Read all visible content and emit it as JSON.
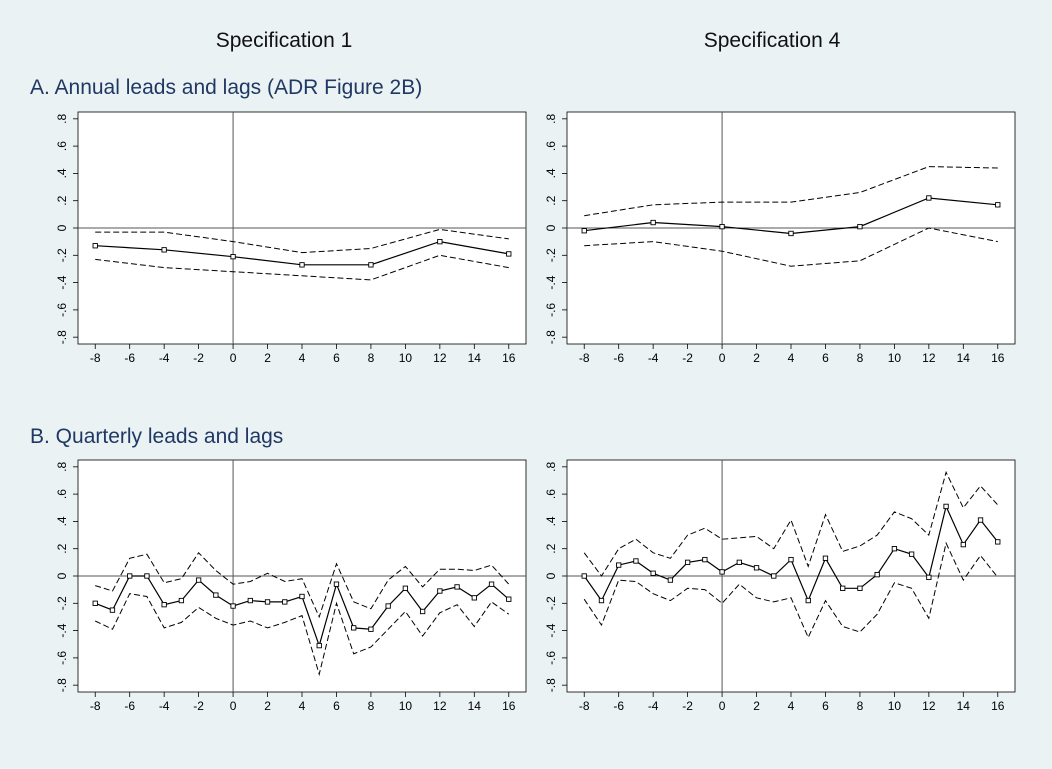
{
  "figure": {
    "col_titles": [
      "Specification 1",
      "Specification 4"
    ],
    "section_titles": [
      "A. Annual leads and lags (ADR Figure 2B)",
      "B. Quarterly leads and lags"
    ],
    "background": "#eaf2f3",
    "title_color": "#1f3864"
  },
  "chart_data": [
    {
      "type": "line",
      "name": "spec1-annual",
      "xlim": [
        -9,
        17
      ],
      "ylim": [
        -0.85,
        0.85
      ],
      "xticks": [
        -8,
        -6,
        -4,
        -2,
        0,
        2,
        4,
        6,
        8,
        10,
        12,
        14,
        16
      ],
      "yticks": [
        -0.8,
        -0.6,
        -0.4,
        -0.2,
        0,
        0.2,
        0.4,
        0.6,
        0.8
      ],
      "ytick_labels": [
        "-.8",
        "-.6",
        "-.4",
        "-.2",
        "0",
        ".2",
        ".4",
        ".6",
        ".8"
      ],
      "grid": false,
      "reference_lines": {
        "x": 0,
        "y": 0
      },
      "x": [
        -8,
        -4,
        0,
        4,
        8,
        12,
        16
      ],
      "series": [
        {
          "role": "estimate",
          "style": "solid",
          "markers": true,
          "values": [
            -0.13,
            -0.16,
            -0.21,
            -0.27,
            -0.27,
            -0.1,
            -0.19
          ]
        },
        {
          "role": "upper",
          "style": "dashed",
          "values": [
            -0.03,
            -0.03,
            -0.1,
            -0.18,
            -0.15,
            -0.01,
            -0.08
          ]
        },
        {
          "role": "lower",
          "style": "dashed",
          "values": [
            -0.23,
            -0.29,
            -0.32,
            -0.35,
            -0.38,
            -0.2,
            -0.29
          ]
        }
      ]
    },
    {
      "type": "line",
      "name": "spec4-annual",
      "xlim": [
        -9,
        17
      ],
      "ylim": [
        -0.85,
        0.85
      ],
      "xticks": [
        -8,
        -6,
        -4,
        -2,
        0,
        2,
        4,
        6,
        8,
        10,
        12,
        14,
        16
      ],
      "yticks": [
        -0.8,
        -0.6,
        -0.4,
        -0.2,
        0,
        0.2,
        0.4,
        0.6,
        0.8
      ],
      "ytick_labels": [
        "-.8",
        "-.6",
        "-.4",
        "-.2",
        "0",
        ".2",
        ".4",
        ".6",
        ".8"
      ],
      "grid": false,
      "reference_lines": {
        "x": 0,
        "y": 0
      },
      "x": [
        -8,
        -4,
        0,
        4,
        8,
        12,
        16
      ],
      "series": [
        {
          "role": "estimate",
          "style": "solid",
          "markers": true,
          "values": [
            -0.02,
            0.04,
            0.01,
            -0.04,
            0.01,
            0.22,
            0.17
          ]
        },
        {
          "role": "upper",
          "style": "dashed",
          "values": [
            0.09,
            0.17,
            0.19,
            0.19,
            0.26,
            0.45,
            0.44
          ]
        },
        {
          "role": "lower",
          "style": "dashed",
          "values": [
            -0.13,
            -0.1,
            -0.17,
            -0.28,
            -0.24,
            0.0,
            -0.1
          ]
        }
      ]
    },
    {
      "type": "line",
      "name": "spec1-quarterly",
      "xlim": [
        -9,
        17
      ],
      "ylim": [
        -0.85,
        0.85
      ],
      "xticks": [
        -8,
        -6,
        -4,
        -2,
        0,
        2,
        4,
        6,
        8,
        10,
        12,
        14,
        16
      ],
      "yticks": [
        -0.8,
        -0.6,
        -0.4,
        -0.2,
        0,
        0.2,
        0.4,
        0.6,
        0.8
      ],
      "ytick_labels": [
        "-.8",
        "-.6",
        "-.4",
        "-.2",
        "0",
        ".2",
        ".4",
        ".6",
        ".8"
      ],
      "grid": false,
      "reference_lines": {
        "x": 0,
        "y": 0
      },
      "x": [
        -8,
        -7,
        -6,
        -5,
        -4,
        -3,
        -2,
        -1,
        0,
        1,
        2,
        3,
        4,
        5,
        6,
        7,
        8,
        9,
        10,
        11,
        12,
        13,
        14,
        15,
        16
      ],
      "series": [
        {
          "role": "estimate",
          "style": "solid",
          "markers": true,
          "values": [
            -0.2,
            -0.25,
            0.0,
            0.0,
            -0.21,
            -0.18,
            -0.03,
            -0.14,
            -0.22,
            -0.18,
            -0.19,
            -0.19,
            -0.15,
            -0.51,
            -0.06,
            -0.38,
            -0.39,
            -0.22,
            -0.09,
            -0.26,
            -0.11,
            -0.08,
            -0.16,
            -0.06,
            -0.17
          ]
        },
        {
          "role": "upper",
          "style": "dashed",
          "values": [
            -0.07,
            -0.11,
            0.13,
            0.16,
            -0.05,
            -0.02,
            0.17,
            0.04,
            -0.06,
            -0.04,
            0.02,
            -0.04,
            -0.02,
            -0.3,
            0.09,
            -0.19,
            -0.24,
            -0.03,
            0.07,
            -0.08,
            0.05,
            0.05,
            0.04,
            0.08,
            -0.06
          ]
        },
        {
          "role": "lower",
          "style": "dashed",
          "values": [
            -0.33,
            -0.39,
            -0.13,
            -0.15,
            -0.38,
            -0.34,
            -0.23,
            -0.31,
            -0.36,
            -0.33,
            -0.38,
            -0.34,
            -0.29,
            -0.72,
            -0.2,
            -0.57,
            -0.52,
            -0.39,
            -0.26,
            -0.44,
            -0.27,
            -0.21,
            -0.37,
            -0.19,
            -0.28
          ]
        }
      ]
    },
    {
      "type": "line",
      "name": "spec4-quarterly",
      "xlim": [
        -9,
        17
      ],
      "ylim": [
        -0.85,
        0.85
      ],
      "xticks": [
        -8,
        -6,
        -4,
        -2,
        0,
        2,
        4,
        6,
        8,
        10,
        12,
        14,
        16
      ],
      "yticks": [
        -0.8,
        -0.6,
        -0.4,
        -0.2,
        0,
        0.2,
        0.4,
        0.6,
        0.8
      ],
      "ytick_labels": [
        "-.8",
        "-.6",
        "-.4",
        "-.2",
        "0",
        ".2",
        ".4",
        ".6",
        ".8"
      ],
      "grid": false,
      "reference_lines": {
        "x": 0,
        "y": 0
      },
      "x": [
        -8,
        -7,
        -6,
        -5,
        -4,
        -3,
        -2,
        -1,
        0,
        1,
        2,
        3,
        4,
        5,
        6,
        7,
        8,
        9,
        10,
        11,
        12,
        13,
        14,
        15,
        16
      ],
      "series": [
        {
          "role": "estimate",
          "style": "solid",
          "markers": true,
          "values": [
            0.0,
            -0.18,
            0.08,
            0.11,
            0.02,
            -0.03,
            0.1,
            0.12,
            0.03,
            0.1,
            0.06,
            0.0,
            0.12,
            -0.18,
            0.13,
            -0.09,
            -0.09,
            0.01,
            0.2,
            0.16,
            -0.01,
            0.51,
            0.23,
            0.41,
            0.25
          ]
        },
        {
          "role": "upper",
          "style": "dashed",
          "values": [
            0.17,
            0.0,
            0.2,
            0.27,
            0.17,
            0.13,
            0.3,
            0.35,
            0.27,
            0.28,
            0.29,
            0.2,
            0.41,
            0.07,
            0.45,
            0.18,
            0.22,
            0.3,
            0.47,
            0.42,
            0.3,
            0.76,
            0.5,
            0.66,
            0.52
          ]
        },
        {
          "role": "lower",
          "style": "dashed",
          "values": [
            -0.17,
            -0.36,
            -0.03,
            -0.04,
            -0.13,
            -0.18,
            -0.09,
            -0.1,
            -0.2,
            -0.06,
            -0.16,
            -0.19,
            -0.16,
            -0.45,
            -0.18,
            -0.37,
            -0.41,
            -0.28,
            -0.05,
            -0.09,
            -0.31,
            0.24,
            -0.03,
            0.15,
            -0.01
          ]
        }
      ]
    }
  ]
}
